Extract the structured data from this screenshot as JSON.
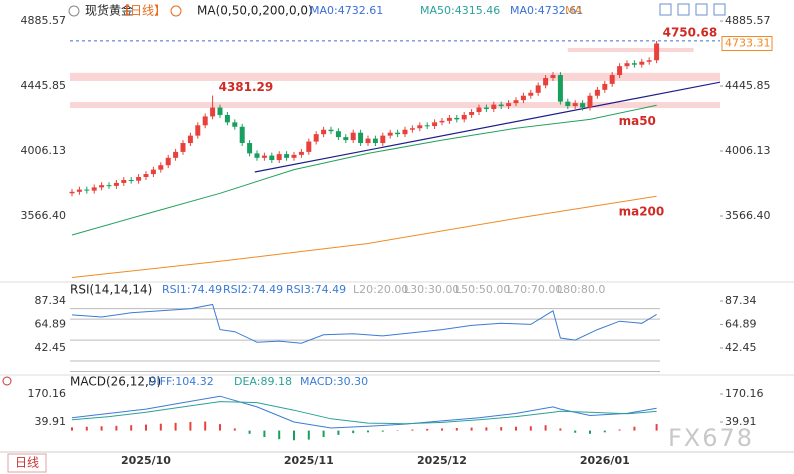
{
  "chart_data": [
    {
      "type": "candlestick",
      "title": "现货黄金",
      "period": "【日线】",
      "indicator": "MA(0,50,0,200,0,0)",
      "legend": [
        {
          "text": "MA0:4732.61",
          "color": "#3a6fd8"
        },
        {
          "text": "MA50:4315.46",
          "color": "#2aa198"
        },
        {
          "text": "MA0:4732.61",
          "color": "#3a6fd8"
        },
        {
          "text": "MA",
          "color": "#f08a24"
        }
      ],
      "categories": [
        null,
        null,
        null,
        null,
        null,
        null,
        null,
        null,
        null,
        null,
        "2025/10",
        null,
        null,
        null,
        null,
        null,
        null,
        null,
        null,
        null,
        null,
        null,
        null,
        null,
        null,
        null,
        null,
        null,
        null,
        null,
        null,
        null,
        "2025/11",
        null,
        null,
        null,
        null,
        null,
        null,
        null,
        null,
        null,
        null,
        null,
        null,
        null,
        null,
        null,
        null,
        null,
        "2025/12",
        null,
        null,
        null,
        null,
        null,
        null,
        null,
        null,
        null,
        null,
        null,
        null,
        null,
        null,
        null,
        null,
        null,
        null,
        null,
        null,
        null,
        "2026/01",
        null,
        null,
        null,
        null,
        null,
        null,
        null
      ],
      "open": [
        3720,
        3730,
        3745,
        3738,
        3760,
        3775,
        3770,
        3790,
        3810,
        3805,
        3830,
        3850,
        3880,
        3910,
        3960,
        4000,
        4060,
        4110,
        4180,
        4240,
        4300,
        4250,
        4200,
        4170,
        4060,
        3990,
        3960,
        3975,
        3945,
        3985,
        3960,
        3980,
        4000,
        4070,
        4120,
        4150,
        4140,
        4100,
        4080,
        4130,
        4060,
        4090,
        4060,
        4110,
        4130,
        4120,
        4150,
        4160,
        4180,
        4175,
        4200,
        4210,
        4230,
        4220,
        4250,
        4270,
        4300,
        4290,
        4320,
        4310,
        4330,
        4350,
        4380,
        4400,
        4450,
        4500,
        4520,
        4340,
        4310,
        4330,
        4300,
        4380,
        4420,
        4460,
        4520,
        4580,
        4600,
        4590,
        4610,
        4620
      ],
      "high": [
        3750,
        3765,
        3765,
        3780,
        3795,
        3795,
        3810,
        3830,
        3830,
        3850,
        3870,
        3900,
        3930,
        3980,
        4020,
        4080,
        4130,
        4200,
        4260,
        4381.29,
        4320,
        4270,
        4220,
        4190,
        4080,
        4010,
        3995,
        3995,
        4005,
        4005,
        4000,
        4020,
        4090,
        4140,
        4170,
        4170,
        4160,
        4120,
        4150,
        4150,
        4110,
        4110,
        4130,
        4150,
        4150,
        4170,
        4180,
        4200,
        4200,
        4220,
        4230,
        4250,
        4250,
        4270,
        4290,
        4320,
        4320,
        4340,
        4340,
        4350,
        4370,
        4400,
        4420,
        4470,
        4520,
        4540,
        4540,
        4360,
        4350,
        4350,
        4400,
        4440,
        4480,
        4540,
        4600,
        4620,
        4620,
        4630,
        4640,
        4750.68
      ],
      "low": [
        3700,
        3710,
        3718,
        3718,
        3740,
        3750,
        3750,
        3770,
        3785,
        3785,
        3810,
        3830,
        3860,
        3890,
        3940,
        3980,
        4040,
        4090,
        4160,
        4220,
        4230,
        4180,
        4150,
        4040,
        3970,
        3940,
        3940,
        3925,
        3925,
        3940,
        3940,
        3960,
        3980,
        4050,
        4100,
        4120,
        4080,
        4060,
        4060,
        4040,
        4040,
        4040,
        4040,
        4090,
        4100,
        4100,
        4130,
        4140,
        4155,
        4155,
        4180,
        4190,
        4200,
        4200,
        4230,
        4250,
        4270,
        4270,
        4290,
        4290,
        4310,
        4330,
        4360,
        4380,
        4430,
        4480,
        4320,
        4290,
        4290,
        4280,
        4280,
        4360,
        4400,
        4440,
        4500,
        4560,
        4570,
        4570,
        4590,
        4600
      ],
      "close": [
        3730,
        3745,
        3738,
        3760,
        3775,
        3770,
        3790,
        3810,
        3805,
        3830,
        3850,
        3880,
        3910,
        3960,
        4000,
        4060,
        4110,
        4180,
        4240,
        4300,
        4250,
        4200,
        4170,
        4060,
        3990,
        3960,
        3975,
        3945,
        3985,
        3960,
        3980,
        4000,
        4070,
        4120,
        4150,
        4140,
        4100,
        4080,
        4130,
        4060,
        4090,
        4060,
        4110,
        4130,
        4120,
        4150,
        4160,
        4180,
        4175,
        4200,
        4210,
        4230,
        4220,
        4250,
        4270,
        4300,
        4290,
        4320,
        4310,
        4330,
        4350,
        4380,
        4400,
        4450,
        4500,
        4520,
        4340,
        4310,
        4330,
        4300,
        4380,
        4420,
        4460,
        4520,
        4580,
        4600,
        4590,
        4610,
        4620,
        4733.31
      ],
      "up_color": "#e8413c",
      "down_color": "#17a05d",
      "series": [
        {
          "name": "ma50",
          "color": "#22a05a",
          "x": [
            0,
            10,
            20,
            30,
            40,
            50,
            60,
            70,
            79
          ],
          "values": [
            3438,
            3580,
            3720,
            3880,
            3990,
            4080,
            4160,
            4220,
            4315.46
          ]
        },
        {
          "name": "ma200",
          "color": "#f08a24",
          "x": [
            0,
            20,
            40,
            60,
            79
          ],
          "values": [
            3150,
            3260,
            3380,
            3550,
            3700
          ]
        }
      ],
      "trendline": {
        "x": [
          24.7,
          87.6
        ],
        "values": [
          3864,
          4472
        ],
        "color": "#1d1d8a"
      },
      "zones": [
        {
          "from": 4480,
          "to": 4535
        },
        {
          "from": 4297,
          "to": 4337
        },
        {
          "from": 4676,
          "to": 4703,
          "x": [
            67,
            84
          ]
        }
      ],
      "annotations": [
        {
          "text": "4381.29",
          "x": 19,
          "value": 4381.29
        },
        {
          "text": "4750.68",
          "x": 79,
          "value": 4750.68
        }
      ],
      "last_label": "4733.31",
      "ylim": [
        3133.4,
        4973.5
      ],
      "yticks": [
        {
          "value": 3566.4,
          "label": "3566.40"
        },
        4006.13,
        4445.85,
        4885.57
      ]
    },
    {
      "type": "line",
      "title": "RSI(14,14,14)",
      "legend": [
        {
          "text": "RSI1:74.49",
          "color": "#3a7bd5"
        },
        {
          "text": "RSI2:74.49",
          "color": "#3a7bd5"
        },
        {
          "text": "RSI3:74.49",
          "color": "#3a7bd5"
        },
        {
          "text": "L20:20.00",
          "color": "#aaaaaa"
        },
        {
          "text": "L30:30.00",
          "color": "#aaaaaa"
        },
        {
          "text": "L50:50.00",
          "color": "#aaaaaa"
        },
        {
          "text": "L70:70.00",
          "color": "#aaaaaa"
        },
        {
          "text": "L80:80.0",
          "color": "#aaaaaa"
        }
      ],
      "series": [
        {
          "color": "#3a7bd5",
          "x": [
            0,
            4,
            8,
            12,
            16,
            19,
            20,
            22,
            25,
            28,
            31,
            34,
            38,
            42,
            46,
            50,
            54,
            58,
            62,
            65,
            66,
            68,
            71,
            74,
            77,
            79
          ],
          "values": [
            74,
            72,
            76,
            78,
            80,
            84,
            60,
            58,
            48,
            49,
            47,
            55,
            56,
            54,
            57,
            60,
            64,
            66,
            65,
            78,
            52,
            50,
            60,
            68,
            66,
            74.49
          ]
        }
      ],
      "levels": [
        20,
        30,
        50,
        70,
        80
      ],
      "ylim": [
        19.5,
        102.6
      ],
      "yticks": [
        42.45,
        64.89,
        87.34
      ]
    },
    {
      "type": "macd",
      "title": "MACD(26,12,9)",
      "legend": [
        {
          "text": "DIFF:104.32",
          "color": "#3a7bd5"
        },
        {
          "text": "DEA:89.18",
          "color": "#2aa198"
        },
        {
          "text": "MACD:30.30",
          "color": "#3a7bd5"
        }
      ],
      "series": [
        {
          "color": "#3a7bd5",
          "x": [
            0,
            5,
            10,
            15,
            20,
            25,
            30,
            35,
            40,
            45,
            50,
            55,
            60,
            65,
            66,
            70,
            75,
            79
          ],
          "values": [
            60,
            80,
            100,
            130,
            160,
            110,
            40,
            12,
            20,
            30,
            45,
            60,
            80,
            110,
            100,
            70,
            80,
            104.32
          ]
        },
        {
          "color": "#2aa198",
          "x": [
            0,
            5,
            10,
            15,
            20,
            25,
            30,
            35,
            40,
            45,
            50,
            55,
            60,
            65,
            66,
            70,
            75,
            79
          ],
          "values": [
            50,
            65,
            85,
            110,
            135,
            130,
            95,
            55,
            35,
            32,
            38,
            50,
            65,
            85,
            90,
            85,
            78,
            89.18
          ]
        }
      ],
      "histogram": {
        "x": [
          0,
          2,
          4,
          6,
          8,
          10,
          12,
          14,
          16,
          18,
          20,
          22,
          24,
          26,
          28,
          30,
          32,
          34,
          36,
          38,
          40,
          42,
          44,
          46,
          48,
          50,
          52,
          54,
          56,
          58,
          60,
          62,
          64,
          66,
          68,
          70,
          72,
          74,
          76,
          79
        ],
        "values": [
          15,
          18,
          20,
          22,
          25,
          28,
          32,
          36,
          40,
          42,
          30,
          10,
          -15,
          -30,
          -40,
          -45,
          -42,
          -30,
          -20,
          -12,
          -8,
          -5,
          2,
          5,
          8,
          10,
          12,
          14,
          15,
          16,
          18,
          20,
          25,
          10,
          -10,
          -15,
          -8,
          5,
          18,
          30.3
        ],
        "up_color": "#e8413c",
        "down_color": "#17a05d"
      },
      "ylim": [
        -99.6,
        244.6
      ],
      "yticks": [
        39.91,
        170.16
      ]
    }
  ],
  "footer": {
    "period": "日线",
    "watermark": "FX678"
  }
}
